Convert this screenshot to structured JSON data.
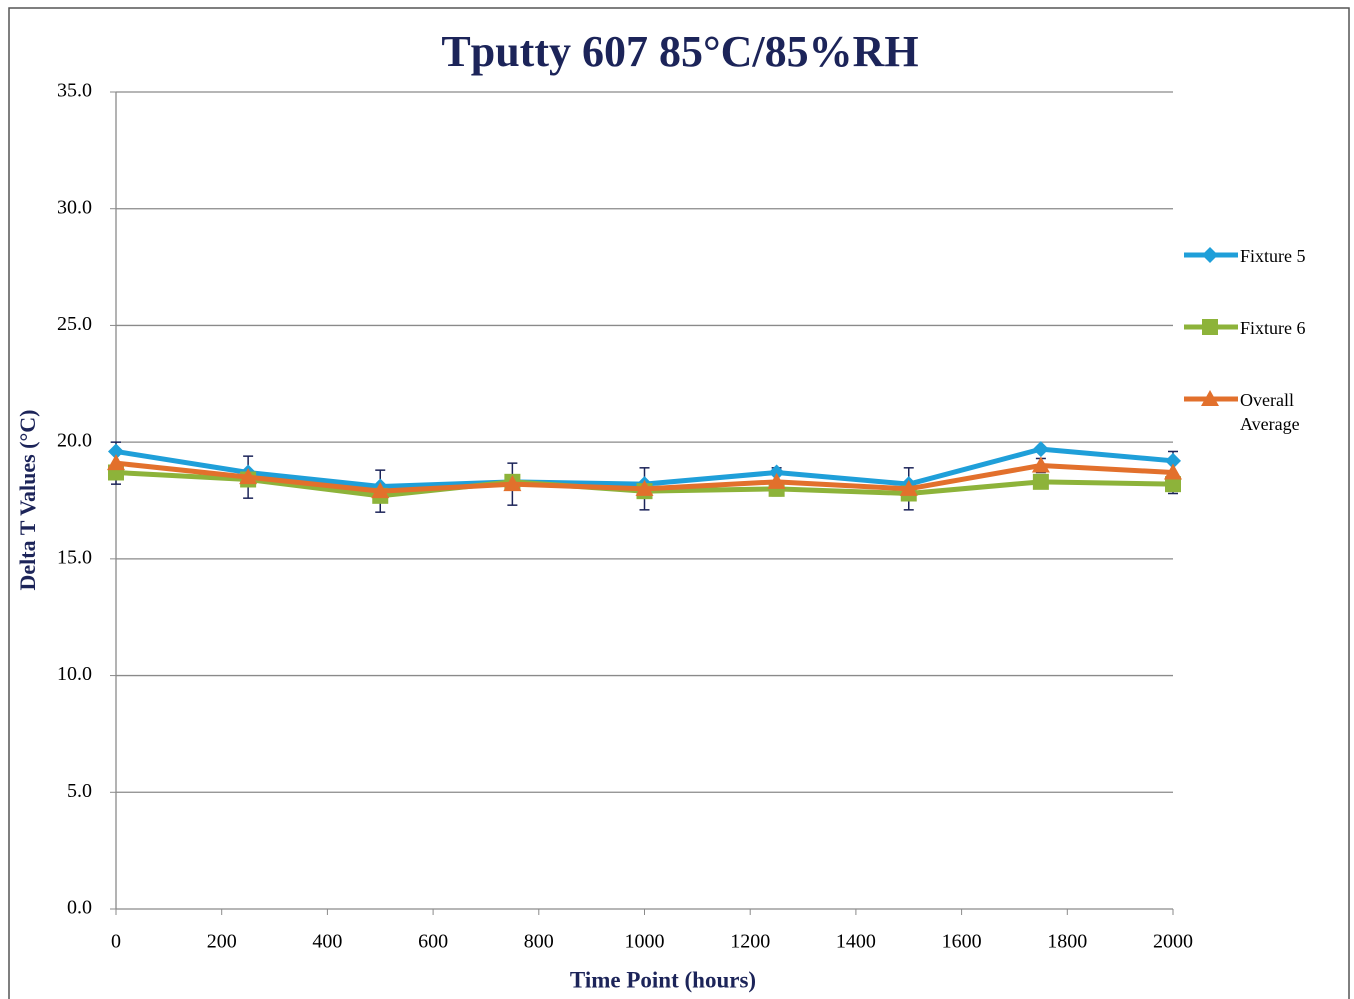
{
  "chart_data": {
    "type": "line",
    "title": "Tputty 607 85°C/85%RH",
    "x_label": "Time Point (hours)",
    "y_label": "Delta T Values (°C)",
    "x": [
      0,
      250,
      500,
      750,
      1000,
      1250,
      1500,
      1750,
      2000
    ],
    "series": [
      {
        "name": "Fixture 5",
        "color": "#1f9fd9",
        "marker": "diamond",
        "values": [
          19.6,
          18.7,
          18.1,
          18.3,
          18.2,
          18.7,
          18.2,
          19.7,
          19.2
        ]
      },
      {
        "name": "Fixture 6",
        "color": "#8db33a",
        "marker": "square",
        "values": [
          18.7,
          18.4,
          17.7,
          18.3,
          17.9,
          18.0,
          17.8,
          18.3,
          18.2
        ]
      },
      {
        "name": "Overall Average",
        "color": "#e2702c",
        "marker": "triangle",
        "values": [
          19.1,
          18.5,
          17.9,
          18.2,
          18.0,
          18.3,
          18.0,
          19.0,
          18.7
        ],
        "errors": [
          0.9,
          0.9,
          0.9,
          0.9,
          0.9,
          0.6,
          0.9,
          0.3,
          0.9
        ]
      }
    ],
    "xlim": [
      0,
      2000
    ],
    "xticks": [
      0,
      200,
      400,
      600,
      800,
      1000,
      1200,
      1400,
      1600,
      1800,
      2000
    ],
    "ylim": [
      0,
      35
    ],
    "yticks": [
      {
        "value": 0,
        "label": "0.0"
      },
      {
        "value": 5,
        "label": "5.0"
      },
      {
        "value": 10,
        "label": "10.0"
      },
      {
        "value": 15,
        "label": "15.0"
      },
      {
        "value": 20,
        "label": "20.0"
      },
      {
        "value": 25,
        "label": "25.0"
      },
      {
        "value": 30,
        "label": "30.0"
      },
      {
        "value": 35,
        "label": "35.0"
      }
    ],
    "grid": true,
    "legend": "right"
  }
}
